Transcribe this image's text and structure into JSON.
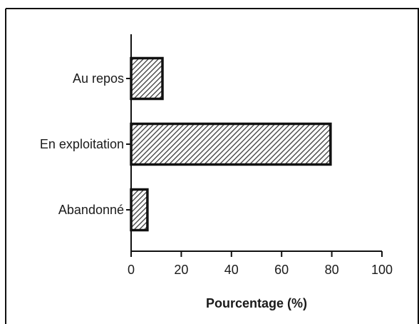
{
  "chart_data": {
    "type": "bar",
    "orientation": "horizontal",
    "categories": [
      "Au repos",
      "En exploitation",
      "Abandonné"
    ],
    "values": [
      12.5,
      79.5,
      6.5
    ],
    "xlabel": "Pourcentage (%)",
    "ylabel": "",
    "title": "",
    "xlim": [
      0,
      100
    ],
    "xticks": [
      "0",
      "20",
      "40",
      "60",
      "80",
      "100"
    ],
    "grid": false,
    "legend": "none",
    "bar_fill": "diagonal-hatch",
    "colors": {
      "bar_stroke": "#111111",
      "hatch": "#3a3a3a",
      "bar_background": "#ffffff",
      "axis": "#111111"
    }
  }
}
